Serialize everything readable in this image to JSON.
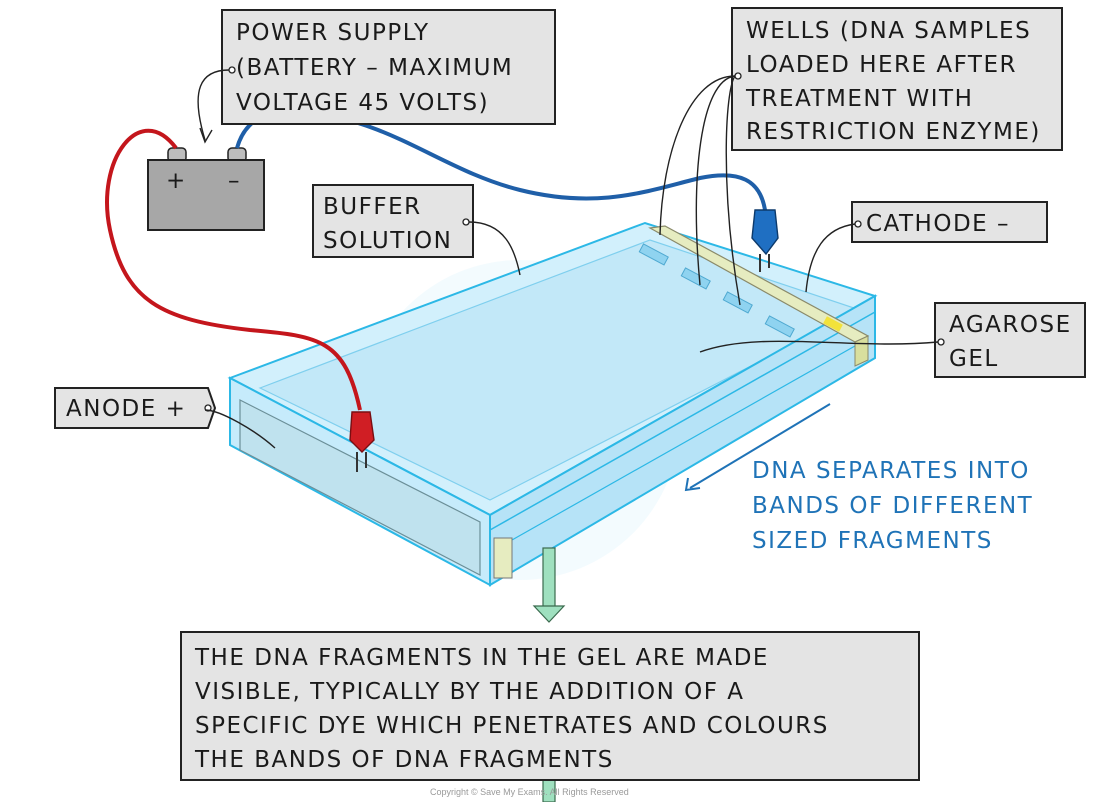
{
  "labels": {
    "power_supply": [
      "POWER SUPPLY",
      "(BATTERY – MAXIMUM",
      "VOLTAGE 45 VOLTS)"
    ],
    "wells": [
      "WELLS (DNA SAMPLES",
      "LOADED HERE AFTER",
      "TREATMENT WITH",
      "RESTRICTION ENZYME)"
    ],
    "buffer": [
      "BUFFER",
      "SOLUTION"
    ],
    "cathode": "CATHODE –",
    "agarose": [
      "AGAROSE",
      "GEL"
    ],
    "anode": "ANODE +",
    "dna_separates": [
      "DNA SEPARATES INTO",
      "BANDS OF DIFFERENT",
      "SIZED FRAGMENTS"
    ],
    "bottom_note": [
      "THE DNA FRAGMENTS IN THE GEL ARE MADE",
      "VISIBLE, TYPICALLY BY THE ADDITION OF A",
      "SPECIFIC DYE WHICH PENETRATES AND COLOURS",
      "THE BANDS OF DNA FRAGMENTS"
    ]
  },
  "battery_symbols": {
    "positive": "+",
    "negative": "–"
  },
  "copyright": "Copyright © Save My Exams. All Rights Reserved",
  "colors": {
    "tank_fill": "#cfeefb",
    "tank_edge": "#2cb8e6",
    "gel_fill": "#bfe6f7",
    "well": "#8fd3f0",
    "red_wire": "#c4161c",
    "blue_wire": "#1f5fa8",
    "battery": "#a7a7a7",
    "arrow_blue": "#1f73b7",
    "green_arrow": "#9fe0bf",
    "electrode": "#e6ecc0"
  }
}
